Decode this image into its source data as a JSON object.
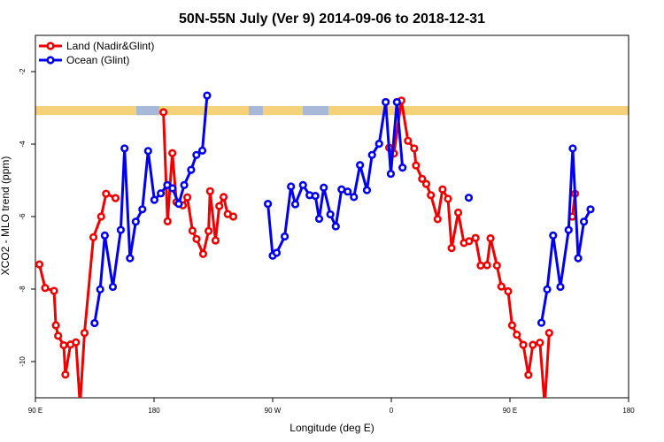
{
  "chart_data": {
    "type": "line",
    "title": "50N-55N July (Ver 9)   2014-09-06 to 2018-12-31",
    "xlabel": "Longitude (deg E)",
    "ylabel": "XCO2 - MLO trend (ppm)",
    "xlim": [
      90,
      450
    ],
    "ylim": [
      -11,
      -1
    ],
    "x_ticks": [
      {
        "value": 90,
        "label": "90 E"
      },
      {
        "value": 162,
        "label": "180"
      },
      {
        "value": 234,
        "label": "90 W"
      },
      {
        "value": 306,
        "label": "0"
      },
      {
        "value": 378,
        "label": "90 E"
      },
      {
        "value": 450,
        "label": "180"
      }
    ],
    "y_ticks": [
      {
        "value": -2,
        "label": "-2"
      },
      {
        "value": -4,
        "label": "-4"
      },
      {
        "value": -6,
        "label": "-6"
      },
      {
        "value": -8,
        "label": "-8"
      },
      {
        "value": -10,
        "label": "-10"
      }
    ],
    "legend_position": "top-left",
    "land_band": {
      "y_top": -2.95,
      "y_bottom": -3.2,
      "land_color": "#f5d27a",
      "ocean_color": "#a8b8d8"
    },
    "series": [
      {
        "name": "Land (Nadir&Glint)",
        "color": "#ee0000",
        "points": [
          [
            92.4,
            -7.32
          ],
          [
            95.9,
            -7.97
          ],
          [
            101.3,
            -8.05
          ],
          [
            102.4,
            -9.0
          ],
          [
            103.8,
            -9.29
          ],
          [
            107.2,
            -9.55
          ],
          [
            108.2,
            -10.36
          ],
          [
            111.3,
            -9.53
          ],
          [
            114.6,
            -9.47
          ],
          [
            117.1,
            -11.2
          ],
          [
            119.8,
            -9.21
          ],
          [
            125.2,
            -6.57
          ],
          [
            129.9,
            -6.0
          ],
          [
            132.9,
            -5.37
          ],
          [
            138.6,
            -5.49
          ],
          [
            167.7,
            -3.12
          ],
          [
            170.2,
            -6.13
          ],
          [
            173.1,
            -4.25
          ],
          [
            175.6,
            -5.6
          ],
          [
            179.5,
            -5.69
          ],
          [
            182.2,
            -5.47
          ],
          [
            185.3,
            -6.39
          ],
          [
            187.8,
            -6.62
          ],
          [
            191.8,
            -7.03
          ],
          [
            195.1,
            -6.4
          ],
          [
            196.0,
            -5.3
          ],
          [
            199.3,
            -6.66
          ],
          [
            201.6,
            -5.71
          ],
          [
            204.2,
            -5.46
          ],
          [
            206.7,
            -5.93
          ],
          [
            210.1,
            -6.0
          ],
          [
            304.7,
            -4.1
          ],
          [
            307.6,
            -4.26
          ],
          [
            312.1,
            -2.8
          ],
          [
            316.1,
            -3.91
          ],
          [
            319.9,
            -4.12
          ],
          [
            321.0,
            -4.59
          ],
          [
            324.7,
            -4.96
          ],
          [
            327.2,
            -5.1
          ],
          [
            330.0,
            -5.41
          ],
          [
            334.1,
            -6.07
          ],
          [
            337.1,
            -5.25
          ],
          [
            340.4,
            -5.51
          ],
          [
            342.6,
            -6.87
          ],
          [
            346.6,
            -5.89
          ],
          [
            350.1,
            -6.73
          ],
          [
            353.2,
            -6.68
          ],
          [
            357.1,
            -6.59
          ],
          [
            360.2,
            -7.35
          ],
          [
            364.1,
            -7.34
          ],
          [
            366.2,
            -6.6
          ],
          [
            370.1,
            -7.35
          ],
          [
            372.8,
            -7.93
          ],
          [
            376.9,
            -8.06
          ],
          [
            379.3,
            -9.0
          ],
          [
            382.2,
            -9.26
          ],
          [
            386.1,
            -9.54
          ],
          [
            389.2,
            -10.37
          ],
          [
            391.9,
            -9.54
          ],
          [
            396.2,
            -9.48
          ],
          [
            399.1,
            -11.2
          ],
          [
            401.8,
            -9.21
          ],
          [
            415.9,
            -6.0
          ],
          [
            417.5,
            -5.37
          ]
        ]
      },
      {
        "name": "Ocean (Glint)",
        "color": "#0000ee",
        "points": [
          [
            125.9,
            -8.94
          ],
          [
            129.3,
            -8.01
          ],
          [
            132.1,
            -6.52
          ],
          [
            137.0,
            -7.94
          ],
          [
            141.8,
            -6.37
          ],
          [
            144.1,
            -4.12
          ],
          [
            147.4,
            -7.15
          ],
          [
            150.9,
            -6.14
          ],
          [
            154.9,
            -5.8
          ],
          [
            158.4,
            -4.19
          ],
          [
            162.2,
            -5.54
          ],
          [
            166.1,
            -5.36
          ],
          [
            170.0,
            -5.13
          ],
          [
            173.2,
            -5.22
          ],
          [
            177.0,
            -5.65
          ],
          [
            180.3,
            -5.13
          ],
          [
            184.5,
            -4.71
          ],
          [
            187.7,
            -4.3
          ],
          [
            191.3,
            -4.18
          ],
          [
            194.2,
            -2.66
          ],
          [
            231.1,
            -5.65
          ],
          [
            234.0,
            -7.08
          ],
          [
            236.4,
            -7.0
          ],
          [
            241.3,
            -6.55
          ],
          [
            245.1,
            -5.17
          ],
          [
            247.7,
            -5.66
          ],
          [
            252.4,
            -5.13
          ],
          [
            256.4,
            -5.41
          ],
          [
            259.9,
            -5.43
          ],
          [
            262.2,
            -6.06
          ],
          [
            265.0,
            -5.2
          ],
          [
            269.0,
            -5.94
          ],
          [
            272.3,
            -6.27
          ],
          [
            275.8,
            -5.25
          ],
          [
            279.5,
            -5.31
          ],
          [
            283.3,
            -5.46
          ],
          [
            287.0,
            -4.58
          ],
          [
            291.2,
            -5.27
          ],
          [
            294.3,
            -4.3
          ],
          [
            298.6,
            -3.99
          ],
          [
            302.6,
            -2.84
          ],
          [
            305.7,
            -4.82
          ],
          [
            309.4,
            -2.84
          ],
          [
            312.8,
            -4.65
          ],
          [
            353.0,
            -5.48
          ],
          [
            397.1,
            -8.93
          ],
          [
            400.6,
            -8.01
          ],
          [
            404.2,
            -6.52
          ],
          [
            408.6,
            -7.94
          ],
          [
            413.6,
            -6.37
          ],
          [
            416.1,
            -4.12
          ],
          [
            419.4,
            -7.15
          ],
          [
            422.9,
            -6.14
          ],
          [
            426.9,
            -5.8
          ]
        ]
      }
    ]
  }
}
